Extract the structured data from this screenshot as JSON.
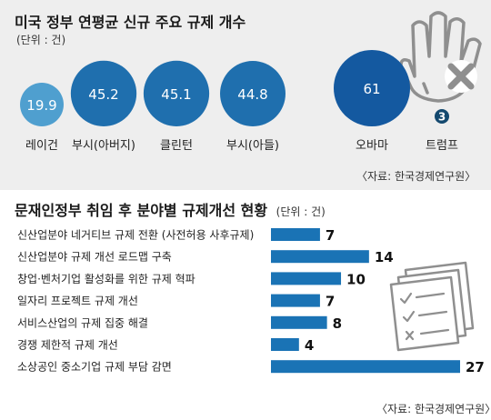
{
  "top": {
    "title": "미국 정부 연평균 신규 주요 규제 개수",
    "unit": "(단위 : 건)",
    "source": "〈자료: 한국경제연구원〉"
  },
  "bottom": {
    "title": "문재인정부 취임 후 분야별 규제개선 현황",
    "unit": "(단위 : 건)",
    "source": "〈자료: 한국경제연구원〉"
  },
  "chart_data": [
    {
      "type": "bubble",
      "title": "미국 정부 연평균 신규 주요 규제 개수",
      "unit": "(단위 : 건)",
      "categories": [
        "레이건",
        "부시(아버지)",
        "클린턴",
        "부시(아들)",
        "오바마",
        "트럼프"
      ],
      "values": [
        19.9,
        45.2,
        45.1,
        44.8,
        61,
        3
      ],
      "colors": [
        "#4f9fcf",
        "#1f6fae",
        "#1f6fae",
        "#1f6fae",
        "#1459a0",
        "#14496f"
      ]
    },
    {
      "type": "bar",
      "orientation": "horizontal",
      "title": "문재인정부 취임 후 분야별 규제개선 현황",
      "unit": "(단위 : 건)",
      "categories": [
        "신산업분야 네거티브 규제 전환 (사전허용 사후규제)",
        "신산업분야 규제 개선 로드맵 구축",
        "창업·벤처기업 활성화를 위한 규제 혁파",
        "일자리 프로젝트 규제 개선",
        "서비스산업의 규제 집중 해결",
        "경쟁 제한적 규제 개선",
        "소상공인 중소기업 규제 부담 감면"
      ],
      "values": [
        7,
        14,
        10,
        7,
        8,
        4,
        27
      ],
      "bar_color": "#1a73b5"
    }
  ]
}
